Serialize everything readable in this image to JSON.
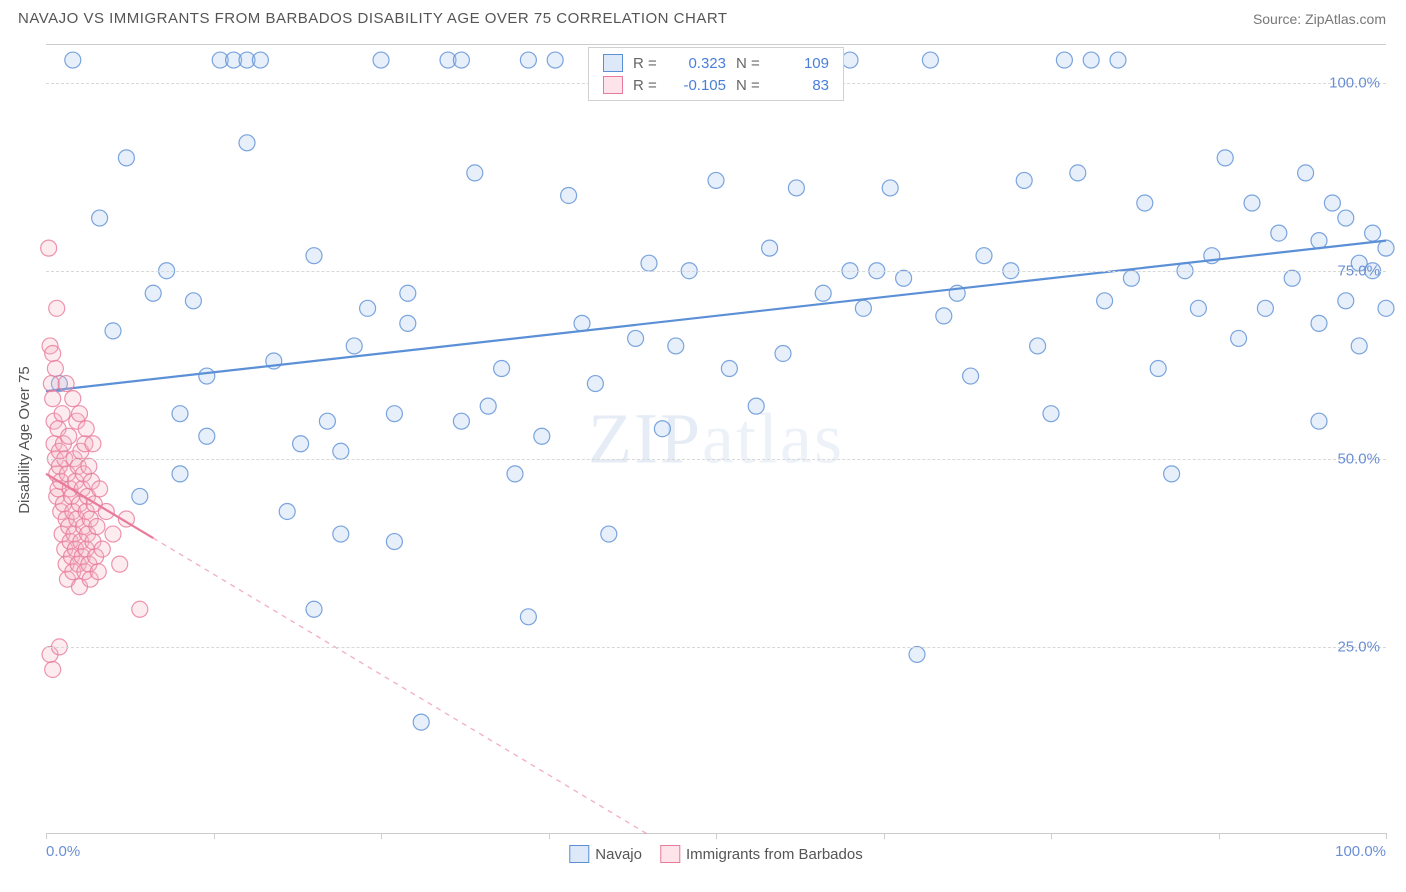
{
  "title": "NAVAJO VS IMMIGRANTS FROM BARBADOS DISABILITY AGE OVER 75 CORRELATION CHART",
  "source_label": "Source:",
  "source_name": "ZipAtlas.com",
  "y_axis_title": "Disability Age Over 75",
  "watermark": "ZIPatlas",
  "chart": {
    "type": "scatter",
    "xlim": [
      0,
      100
    ],
    "ylim": [
      0,
      105
    ],
    "x_ticks": [
      0,
      12.5,
      25,
      37.5,
      50,
      62.5,
      75,
      87.5,
      100
    ],
    "x_tick_labels": {
      "0": "0.0%",
      "100": "100.0%"
    },
    "y_gridlines": [
      25,
      50,
      75,
      100
    ],
    "y_tick_labels": {
      "25": "25.0%",
      "50": "50.0%",
      "75": "75.0%",
      "100": "100.0%"
    },
    "background_color": "#ffffff",
    "grid_color": "#d8d8d8",
    "axis_label_color": "#6a8fd4",
    "marker_radius": 8,
    "marker_stroke_width": 1.2,
    "marker_fill_opacity": 0.28,
    "marker_stroke_opacity": 0.8,
    "trend_line_width": 2.2,
    "trend_dash": "5,5"
  },
  "series": [
    {
      "name": "Navajo",
      "label": "Navajo",
      "color_fill": "#a6c5ec",
      "color_stroke": "#5b8fd6",
      "R": "0.323",
      "N": "109",
      "trend": {
        "x1": 0,
        "y1": 59,
        "x2": 100,
        "y2": 79,
        "solid_until_x": 100
      },
      "points": [
        [
          1,
          60
        ],
        [
          2,
          103
        ],
        [
          4,
          82
        ],
        [
          5,
          67
        ],
        [
          6,
          90
        ],
        [
          7,
          45
        ],
        [
          8,
          72
        ],
        [
          9,
          75
        ],
        [
          10,
          56
        ],
        [
          10,
          48
        ],
        [
          11,
          71
        ],
        [
          12,
          61
        ],
        [
          12,
          53
        ],
        [
          13,
          103
        ],
        [
          14,
          103
        ],
        [
          15,
          103
        ],
        [
          16,
          103
        ],
        [
          17,
          63
        ],
        [
          18,
          43
        ],
        [
          19,
          52
        ],
        [
          20,
          77
        ],
        [
          21,
          55
        ],
        [
          22,
          51
        ],
        [
          22,
          40
        ],
        [
          23,
          65
        ],
        [
          24,
          70
        ],
        [
          25,
          103
        ],
        [
          26,
          56
        ],
        [
          26,
          39
        ],
        [
          27,
          72
        ],
        [
          27,
          68
        ],
        [
          28,
          15
        ],
        [
          20,
          30
        ],
        [
          30,
          103
        ],
        [
          31,
          55
        ],
        [
          32,
          88
        ],
        [
          33,
          57
        ],
        [
          34,
          62
        ],
        [
          35,
          48
        ],
        [
          36,
          29
        ],
        [
          37,
          53
        ],
        [
          38,
          103
        ],
        [
          39,
          85
        ],
        [
          40,
          68
        ],
        [
          41,
          60
        ],
        [
          42,
          40
        ],
        [
          44,
          66
        ],
        [
          45,
          76
        ],
        [
          46,
          54
        ],
        [
          47,
          65
        ],
        [
          48,
          75
        ],
        [
          50,
          87
        ],
        [
          51,
          62
        ],
        [
          52,
          103
        ],
        [
          53,
          57
        ],
        [
          54,
          78
        ],
        [
          55,
          64
        ],
        [
          56,
          86
        ],
        [
          58,
          72
        ],
        [
          60,
          103
        ],
        [
          61,
          70
        ],
        [
          62,
          75
        ],
        [
          63,
          86
        ],
        [
          64,
          74
        ],
        [
          65,
          24
        ],
        [
          66,
          103
        ],
        [
          67,
          69
        ],
        [
          68,
          72
        ],
        [
          69,
          61
        ],
        [
          70,
          77
        ],
        [
          72,
          75
        ],
        [
          73,
          87
        ],
        [
          74,
          65
        ],
        [
          75,
          56
        ],
        [
          76,
          103
        ],
        [
          77,
          88
        ],
        [
          78,
          103
        ],
        [
          79,
          71
        ],
        [
          80,
          103
        ],
        [
          81,
          74
        ],
        [
          82,
          84
        ],
        [
          83,
          62
        ],
        [
          84,
          48
        ],
        [
          85,
          75
        ],
        [
          86,
          70
        ],
        [
          87,
          77
        ],
        [
          88,
          90
        ],
        [
          89,
          66
        ],
        [
          90,
          84
        ],
        [
          91,
          70
        ],
        [
          92,
          80
        ],
        [
          93,
          74
        ],
        [
          94,
          88
        ],
        [
          95,
          68
        ],
        [
          95,
          79
        ],
        [
          96,
          84
        ],
        [
          97,
          71
        ],
        [
          97,
          82
        ],
        [
          98,
          76
        ],
        [
          98,
          65
        ],
        [
          99,
          80
        ],
        [
          99,
          75
        ],
        [
          100,
          78
        ],
        [
          100,
          70
        ],
        [
          15,
          92
        ],
        [
          31,
          103
        ],
        [
          36,
          103
        ],
        [
          60,
          75
        ],
        [
          95,
          55
        ]
      ]
    },
    {
      "name": "Immigrants from Barbados",
      "label": "Immigrants from Barbados",
      "color_fill": "#f6b8c6",
      "color_stroke": "#e87a9a",
      "R": "-0.105",
      "N": "83",
      "trend": {
        "x1": 0,
        "y1": 48,
        "x2": 45,
        "y2": 0,
        "solid_until_x": 8
      },
      "points": [
        [
          0.2,
          78
        ],
        [
          0.3,
          65
        ],
        [
          0.4,
          60
        ],
        [
          0.5,
          64
        ],
        [
          0.5,
          58
        ],
        [
          0.6,
          55
        ],
        [
          0.6,
          52
        ],
        [
          0.7,
          50
        ],
        [
          0.7,
          62
        ],
        [
          0.8,
          48
        ],
        [
          0.8,
          45
        ],
        [
          0.9,
          46
        ],
        [
          0.9,
          54
        ],
        [
          1.0,
          51
        ],
        [
          1.0,
          49
        ],
        [
          1.1,
          47
        ],
        [
          1.1,
          43
        ],
        [
          1.2,
          40
        ],
        [
          1.2,
          56
        ],
        [
          1.3,
          52
        ],
        [
          1.3,
          44
        ],
        [
          1.4,
          38
        ],
        [
          1.4,
          50
        ],
        [
          1.5,
          42
        ],
        [
          1.5,
          36
        ],
        [
          1.6,
          48
        ],
        [
          1.6,
          34
        ],
        [
          1.7,
          53
        ],
        [
          1.7,
          41
        ],
        [
          1.8,
          46
        ],
        [
          1.8,
          39
        ],
        [
          1.9,
          37
        ],
        [
          1.9,
          45
        ],
        [
          2.0,
          43
        ],
        [
          2.0,
          35
        ],
        [
          2.1,
          50
        ],
        [
          2.1,
          40
        ],
        [
          2.2,
          47
        ],
        [
          2.2,
          38
        ],
        [
          2.3,
          55
        ],
        [
          2.3,
          42
        ],
        [
          2.4,
          36
        ],
        [
          2.4,
          49
        ],
        [
          2.5,
          44
        ],
        [
          2.5,
          33
        ],
        [
          2.6,
          51
        ],
        [
          2.6,
          39
        ],
        [
          2.7,
          46
        ],
        [
          2.7,
          37
        ],
        [
          2.8,
          41
        ],
        [
          2.8,
          48
        ],
        [
          2.9,
          35
        ],
        [
          2.9,
          52
        ],
        [
          3.0,
          43
        ],
        [
          3.0,
          38
        ],
        [
          3.1,
          45
        ],
        [
          3.1,
          40
        ],
        [
          3.2,
          36
        ],
        [
          3.2,
          49
        ],
        [
          3.3,
          42
        ],
        [
          3.3,
          34
        ],
        [
          3.4,
          47
        ],
        [
          3.5,
          39
        ],
        [
          3.6,
          44
        ],
        [
          3.7,
          37
        ],
        [
          3.8,
          41
        ],
        [
          3.9,
          35
        ],
        [
          4.0,
          46
        ],
        [
          4.2,
          38
        ],
        [
          4.5,
          43
        ],
        [
          5.0,
          40
        ],
        [
          5.5,
          36
        ],
        [
          6.0,
          42
        ],
        [
          7.0,
          30
        ],
        [
          0.3,
          24
        ],
        [
          0.5,
          22
        ],
        [
          1.0,
          25
        ],
        [
          1.5,
          60
        ],
        [
          2.0,
          58
        ],
        [
          2.5,
          56
        ],
        [
          3.0,
          54
        ],
        [
          3.5,
          52
        ],
        [
          0.8,
          70
        ]
      ]
    }
  ],
  "stats_legend": {
    "R_label": "R =",
    "N_label": "N ="
  },
  "bottom_legend_items": [
    "Navajo",
    "Immigrants from Barbados"
  ]
}
